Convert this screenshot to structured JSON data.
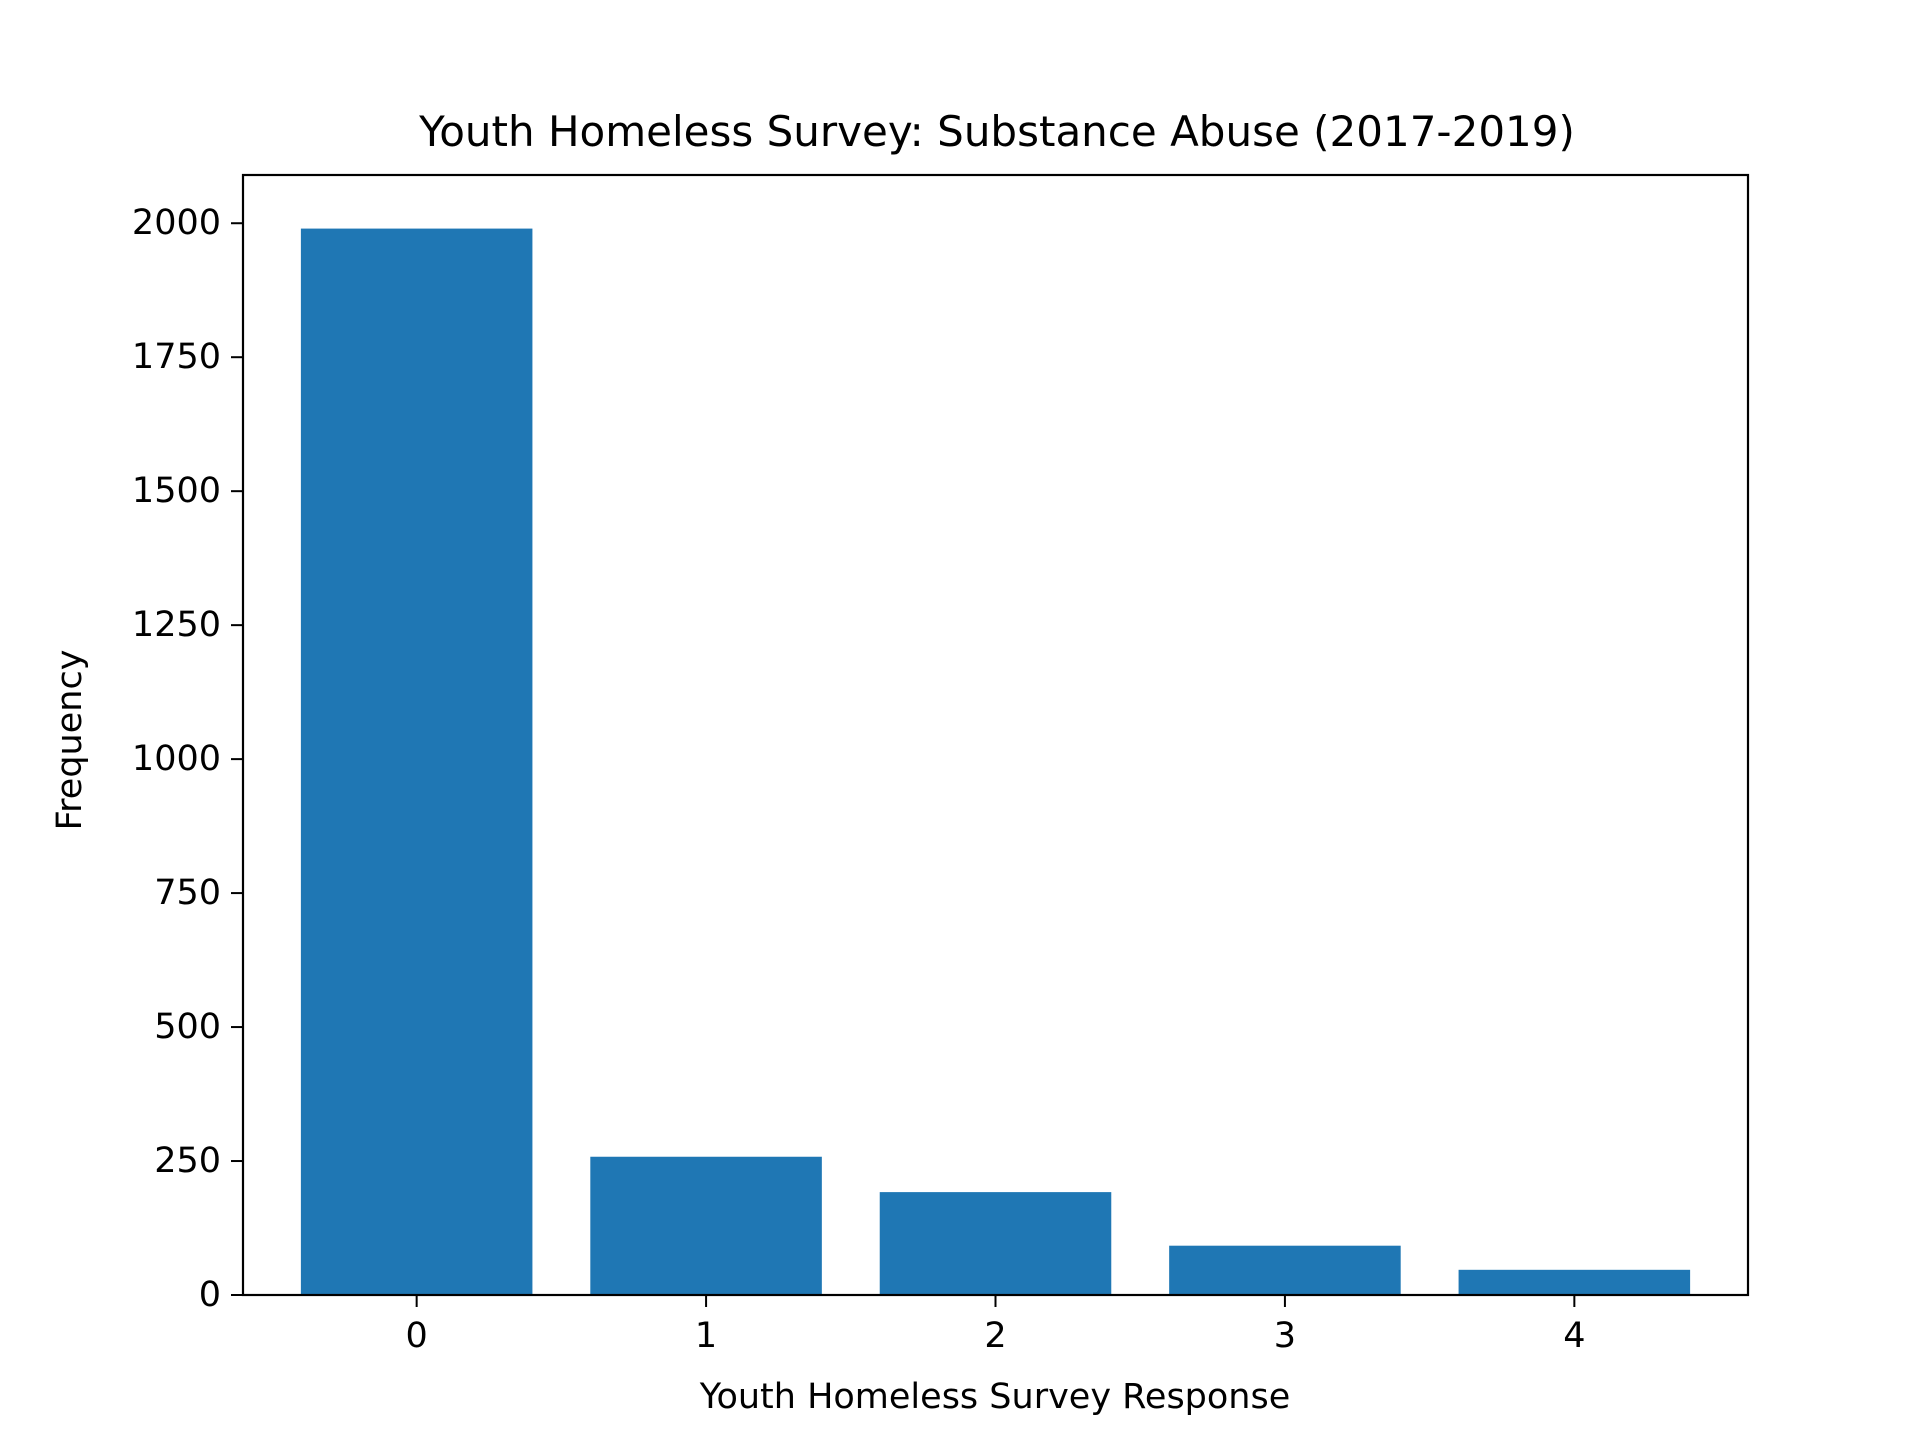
{
  "chart_data": {
    "type": "bar",
    "title": "Youth Homeless Survey: Substance Abuse (2017-2019)",
    "xlabel": "Youth Homeless Survey Response",
    "ylabel": "Frequency",
    "categories": [
      "0",
      "1",
      "2",
      "3",
      "4"
    ],
    "values": [
      1990,
      258,
      192,
      92,
      47
    ],
    "ylim": [
      0,
      2090
    ],
    "yticks": [
      0,
      250,
      500,
      750,
      1000,
      1250,
      1500,
      1750,
      2000
    ],
    "grid": false,
    "legend": "none",
    "bar_color": "#1f77b4"
  }
}
